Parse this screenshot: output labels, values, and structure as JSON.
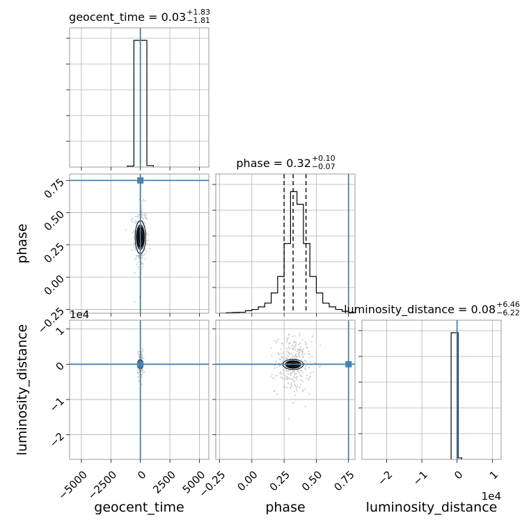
{
  "chart_data": {
    "type": "corner",
    "parameters": [
      "geocent_time",
      "phase",
      "luminosity_distance"
    ],
    "axis_labels": {
      "x": [
        "geocent_time",
        "phase",
        "luminosity_distance"
      ],
      "y": [
        "phase",
        "luminosity_distance"
      ]
    },
    "titles": [
      {
        "param": "geocent_time",
        "prefix": "geocent_time = 0.03",
        "plus": "+1.83",
        "minus": "−1.81"
      },
      {
        "param": "phase",
        "prefix": "phase = 0.32",
        "plus": "+0.10",
        "minus": "−0.07"
      },
      {
        "param": "luminosity_distance",
        "prefix": "luminosity_distance = 0.08",
        "plus": "+6.46",
        "minus": "−6.22"
      }
    ],
    "ranges": {
      "geocent_time": [
        -6000,
        5800
      ],
      "phase": [
        -0.28,
        0.8
      ],
      "luminosity_distance": [
        -27000,
        12500
      ]
    },
    "ticks": {
      "geocent_time": {
        "values": [
          -5000,
          -2500,
          0,
          2500,
          5000
        ],
        "labels": [
          "−5000",
          "−2500",
          "0",
          "2500",
          "5000"
        ]
      },
      "phase": {
        "values": [
          -0.25,
          0.0,
          0.25,
          0.5,
          0.75
        ],
        "labels": [
          "−0.25",
          "0.00",
          "0.25",
          "0.50",
          "0.75"
        ]
      },
      "luminosity_distance": {
        "values": [
          -20000,
          -10000,
          0,
          10000
        ],
        "labels": [
          "−2",
          "−1",
          "0",
          "1"
        ]
      }
    },
    "offset_text": {
      "luminosity_distance": "1e4"
    },
    "truths": {
      "geocent_time": 0,
      "phase": 0.75,
      "luminosity_distance": 0
    },
    "truth_color": "#4682b4",
    "quantiles": {
      "geocent_time": [
        -1.78,
        0.03,
        1.86
      ],
      "phase": [
        0.25,
        0.32,
        0.42
      ],
      "luminosity_distance": [
        -6.14,
        0.08,
        6.54
      ]
    },
    "histograms": {
      "geocent_time": {
        "edges": [
          -1100,
          -550,
          0,
          550,
          1100
        ],
        "density": [
          0.008,
          1.0,
          1.0,
          0.012
        ]
      },
      "phase": {
        "edges": [
          -0.25,
          -0.2,
          -0.15,
          -0.1,
          -0.05,
          0.0,
          0.05,
          0.1,
          0.15,
          0.2,
          0.25,
          0.3,
          0.35,
          0.4,
          0.45,
          0.5,
          0.55,
          0.6,
          0.65,
          0.7,
          0.75,
          0.8
        ],
        "density": [
          0.0,
          0.004,
          0.006,
          0.008,
          0.02,
          0.03,
          0.05,
          0.08,
          0.16,
          0.29,
          0.55,
          0.96,
          0.86,
          0.55,
          0.29,
          0.16,
          0.08,
          0.05,
          0.03,
          0.015,
          0.006
        ]
      },
      "luminosity_distance": {
        "edges": [
          -1700,
          -700,
          300,
          1300
        ],
        "density": [
          1.0,
          1.0,
          0.012
        ]
      }
    },
    "grid": true,
    "contour_color": "#000000",
    "scatter_color": "#c8c8c8"
  }
}
